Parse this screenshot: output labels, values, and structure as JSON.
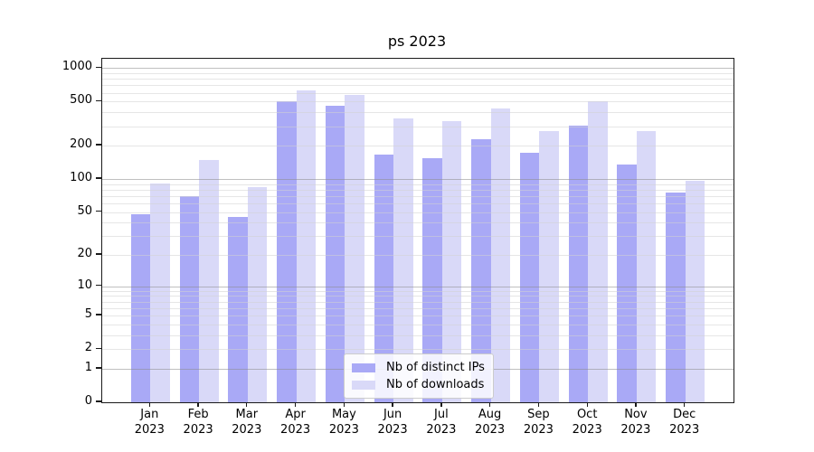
{
  "chart_data": {
    "type": "bar",
    "title": "ps 2023",
    "categories": [
      "Jan 2023",
      "Feb 2023",
      "Mar 2023",
      "Apr 2023",
      "May 2023",
      "Jun 2023",
      "Jul 2023",
      "Aug 2023",
      "Sep 2023",
      "Oct 2023",
      "Nov 2023",
      "Dec 2023"
    ],
    "series": [
      {
        "name": "Nb of distinct IPs",
        "color": "#a9a9f6",
        "values": [
          48,
          70,
          45,
          500,
          455,
          167,
          155,
          228,
          172,
          306,
          136,
          75
        ]
      },
      {
        "name": "Nb of downloads",
        "color": "#d9d9f8",
        "values": [
          91,
          148,
          84,
          630,
          575,
          354,
          332,
          435,
          269,
          505,
          269,
          97
        ]
      }
    ],
    "xlabel": "",
    "ylabel": "",
    "yscale": "log1p",
    "y_ticks": [
      0,
      1,
      2,
      5,
      10,
      20,
      50,
      100,
      200,
      500,
      1000
    ],
    "y_major_gridlines": [
      1,
      10,
      100,
      1000
    ],
    "ylim": [
      0,
      1210
    ],
    "grid": "horizontal major+minor, drawn above bars",
    "legend_position": "bottom-center inside plot"
  }
}
